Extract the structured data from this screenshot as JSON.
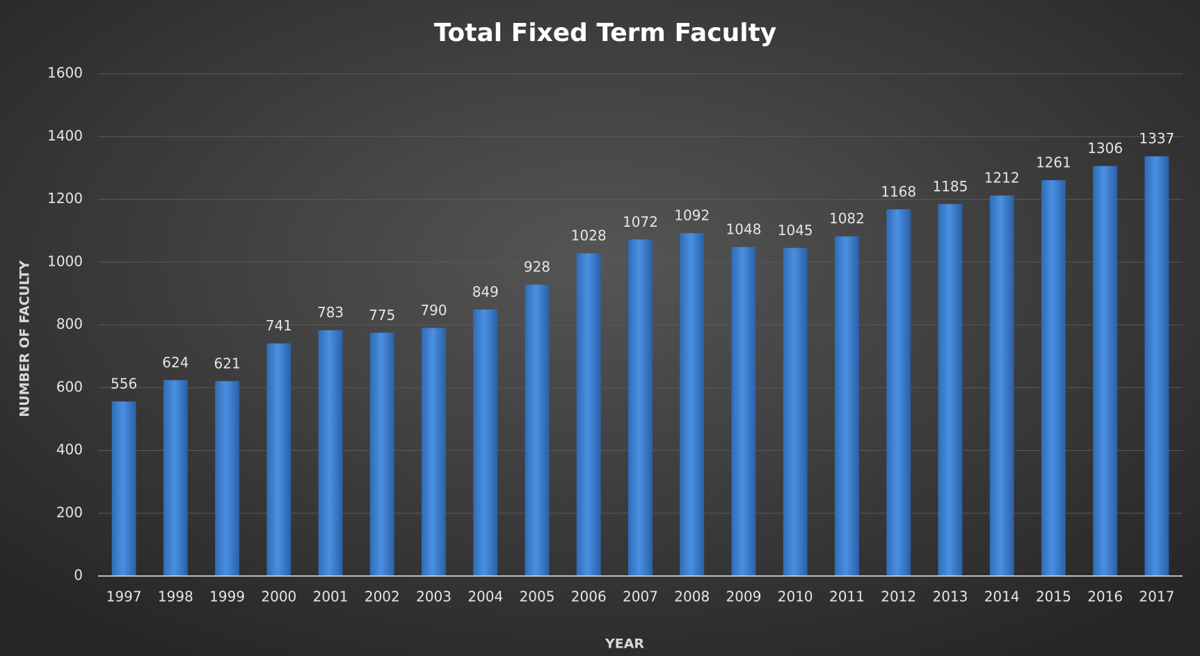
{
  "chart_data": {
    "type": "bar",
    "title": "Total Fixed Term Faculty",
    "x_label": "YEAR",
    "y_label": "NUMBER OF FACULTY",
    "categories": [
      "1997",
      "1998",
      "1999",
      "2000",
      "2001",
      "2002",
      "2003",
      "2004",
      "2005",
      "2006",
      "2007",
      "2008",
      "2009",
      "2010",
      "2011",
      "2012",
      "2013",
      "2014",
      "2015",
      "2016",
      "2017"
    ],
    "values": [
      556,
      624,
      621,
      741,
      783,
      775,
      790,
      849,
      928,
      1028,
      1072,
      1092,
      1048,
      1045,
      1082,
      1168,
      1185,
      1212,
      1261,
      1306,
      1337
    ],
    "color": "#3f86d8",
    "ylim": [
      0,
      1600
    ],
    "yticks": [
      0,
      200,
      400,
      600,
      800,
      1000,
      1200,
      1400,
      1600
    ],
    "grid": true
  }
}
